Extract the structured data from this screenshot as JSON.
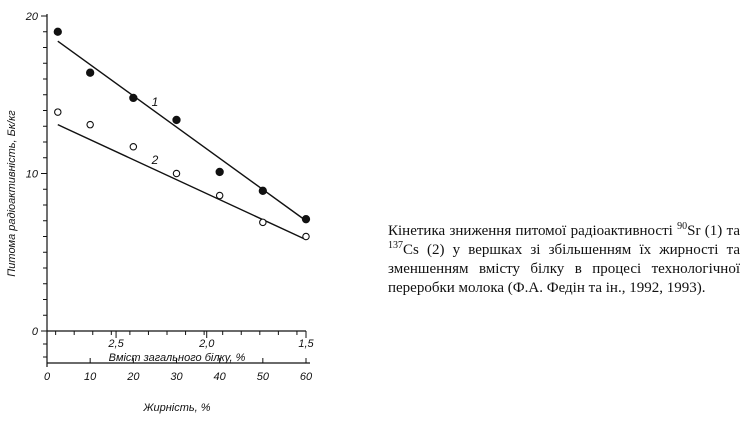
{
  "chart_data": {
    "type": "scatter",
    "ylabel": "Питома радіоактивність, Бк/кг",
    "xlabel_top": "Вміст загального білку, %",
    "xlabel_bottom": "Жирність, %",
    "ylim": [
      0,
      20
    ],
    "yticks": [
      0,
      10,
      20
    ],
    "xlim_fat": [
      0,
      60
    ],
    "fat_ticks": [
      0,
      10,
      20,
      30,
      40,
      50,
      60
    ],
    "protein_ticks": [
      {
        "label": "2,5",
        "at_fat": 16
      },
      {
        "label": "2,0",
        "at_fat": 37
      },
      {
        "label": "1,5",
        "at_fat": 60
      }
    ],
    "series": [
      {
        "name": "1",
        "marker": "filled",
        "x": [
          2.5,
          10,
          20,
          30,
          40,
          50,
          60
        ],
        "y": [
          19.0,
          16.4,
          14.8,
          13.4,
          10.1,
          8.9,
          7.1
        ],
        "fit": {
          "x0": 2.5,
          "y0": 18.4,
          "x1": 60,
          "y1": 7.0
        },
        "label_at": [
          25,
          14.3
        ]
      },
      {
        "name": "2",
        "marker": "open",
        "x": [
          2.5,
          10,
          20,
          30,
          40,
          50,
          60
        ],
        "y": [
          13.9,
          13.1,
          11.7,
          10.0,
          8.6,
          6.9,
          6.0
        ],
        "fit": {
          "x0": 2.5,
          "y0": 13.1,
          "x1": 60,
          "y1": 5.8
        },
        "label_at": [
          25,
          10.6
        ]
      }
    ]
  },
  "caption": {
    "part1": "Кінетика зниження питомої радіоактивності ",
    "sup1": "90",
    "part2": "Sr (1) та ",
    "sup2": "137",
    "part3": "Cs (2) у вершках зі збільшенням їх жирності та зменшенням вмісту білку в процесі технологічної переробки молока (Ф.А. Федін та ін., 1992, 1993)."
  }
}
